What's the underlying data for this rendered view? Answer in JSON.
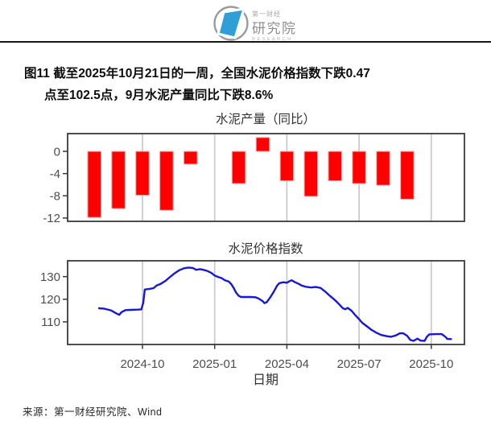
{
  "header": {
    "logo": {
      "brand_small": "第一财经",
      "brand_main": "研究院",
      "brand_sub": "RESEARCH"
    }
  },
  "figure": {
    "caption_line1": "图11  截至2025年10月21日的一周，全国水泥价格指数下跌0.47",
    "caption_line2": "点至102.5点，9月水泥产量同比下跌8.6%",
    "xlabel": "日期",
    "source": "来源：第一财经研究院、Wind"
  },
  "colors": {
    "bar": "#fe0000",
    "bar_edge": "#ffa8a8",
    "line": "#1717d9",
    "grid": "#c9c9c9",
    "border": "#3a3a3a",
    "tick_text": "#4d4d4d",
    "axis_tick": "#3a3a3a",
    "logo_blue": "#2f9fd6",
    "logo_gray": "#9b9b9b"
  },
  "x_axis": {
    "ticks": [
      "2024-10",
      "2025-01",
      "2025-04",
      "2025-07",
      "2025-10"
    ],
    "label": "日期"
  },
  "chart_data": [
    {
      "type": "bar",
      "title": "水泥产量（同比）",
      "ylabel": "",
      "xlabel": "",
      "categories": [
        "2024-08",
        "2024-09",
        "2024-10",
        "2024-11",
        "2024-12",
        "2025-02",
        "2025-03",
        "2025-04",
        "2025-05",
        "2025-06",
        "2025-07",
        "2025-08",
        "2025-09"
      ],
      "values": [
        -11.9,
        -10.3,
        -7.9,
        -10.6,
        -2.3,
        -5.8,
        2.5,
        -5.3,
        -8.1,
        -5.3,
        -5.8,
        -6.1,
        -8.6
      ],
      "yticks": [
        0,
        -4,
        -8,
        -12
      ],
      "ylim": [
        -12.6,
        3.2
      ],
      "x_gridlines": [
        "2024-10",
        "2025-01",
        "2025-04",
        "2025-07",
        "2025-10"
      ],
      "grid": "vertical-only",
      "legend": "none"
    },
    {
      "type": "line",
      "title": "水泥价格指数",
      "ylabel": "",
      "xlabel": "日期",
      "yticks": [
        130,
        120,
        110
      ],
      "ylim": [
        100,
        137
      ],
      "x_gridlines": [
        "2024-10",
        "2025-01",
        "2025-04",
        "2025-07",
        "2025-10"
      ],
      "grid": "vertical-only",
      "legend": "none",
      "series": [
        {
          "name": "水泥价格指数",
          "points": [
            [
              "2024-08-07",
              116.0
            ],
            [
              "2024-08-14",
              115.8
            ],
            [
              "2024-08-22",
              115.1
            ],
            [
              "2024-08-28",
              113.9
            ],
            [
              "2024-09-02",
              113.1
            ],
            [
              "2024-09-05",
              114.3
            ],
            [
              "2024-09-10",
              115.2
            ],
            [
              "2024-09-17",
              115.3
            ],
            [
              "2024-09-25",
              115.4
            ],
            [
              "2024-09-30",
              115.5
            ],
            [
              "2024-10-02",
              118.5
            ],
            [
              "2024-10-04",
              124.3
            ],
            [
              "2024-10-10",
              124.6
            ],
            [
              "2024-10-15",
              124.9
            ],
            [
              "2024-10-19",
              126.1
            ],
            [
              "2024-10-24",
              126.8
            ],
            [
              "2024-10-30",
              128.1
            ],
            [
              "2024-11-05",
              129.7
            ],
            [
              "2024-11-11",
              131.4
            ],
            [
              "2024-11-17",
              132.8
            ],
            [
              "2024-11-23",
              133.7
            ],
            [
              "2024-11-29",
              134.0
            ],
            [
              "2024-12-04",
              133.8
            ],
            [
              "2024-12-08",
              133.0
            ],
            [
              "2024-12-13",
              133.3
            ],
            [
              "2024-12-17",
              133.0
            ],
            [
              "2024-12-22",
              132.5
            ],
            [
              "2024-12-27",
              131.7
            ],
            [
              "2025-01-01",
              130.5
            ],
            [
              "2025-01-05",
              129.9
            ],
            [
              "2025-01-10",
              129.3
            ],
            [
              "2025-01-14",
              128.4
            ],
            [
              "2025-01-19",
              127.8
            ],
            [
              "2025-01-22",
              126.7
            ],
            [
              "2025-01-25",
              125.0
            ],
            [
              "2025-01-28",
              123.0
            ],
            [
              "2025-02-01",
              121.5
            ],
            [
              "2025-02-04",
              121.0
            ],
            [
              "2025-02-10",
              121.0
            ],
            [
              "2025-02-16",
              121.0
            ],
            [
              "2025-02-22",
              120.9
            ],
            [
              "2025-02-26",
              120.3
            ],
            [
              "2025-03-01",
              119.1
            ],
            [
              "2025-03-03",
              118.3
            ],
            [
              "2025-03-06",
              118.7
            ],
            [
              "2025-03-10",
              120.6
            ],
            [
              "2025-03-15",
              123.4
            ],
            [
              "2025-03-19",
              126.0
            ],
            [
              "2025-03-22",
              127.1
            ],
            [
              "2025-03-27",
              127.5
            ],
            [
              "2025-04-01",
              127.3
            ],
            [
              "2025-04-04",
              127.9
            ],
            [
              "2025-04-07",
              128.4
            ],
            [
              "2025-04-11",
              127.6
            ],
            [
              "2025-04-16",
              126.8
            ],
            [
              "2025-04-20",
              126.0
            ],
            [
              "2025-04-25",
              125.5
            ],
            [
              "2025-05-01",
              125.2
            ],
            [
              "2025-05-07",
              125.4
            ],
            [
              "2025-05-13",
              125.0
            ],
            [
              "2025-05-19",
              123.4
            ],
            [
              "2025-05-25",
              121.5
            ],
            [
              "2025-06-01",
              119.6
            ],
            [
              "2025-06-07",
              117.5
            ],
            [
              "2025-06-11",
              116.0
            ],
            [
              "2025-06-14",
              115.6
            ],
            [
              "2025-06-17",
              116.2
            ],
            [
              "2025-06-22",
              114.9
            ],
            [
              "2025-06-26",
              113.2
            ],
            [
              "2025-07-01",
              111.2
            ],
            [
              "2025-07-05",
              109.6
            ],
            [
              "2025-07-11",
              108.0
            ],
            [
              "2025-07-17",
              106.4
            ],
            [
              "2025-07-23",
              105.2
            ],
            [
              "2025-07-29",
              104.2
            ],
            [
              "2025-08-05",
              103.7
            ],
            [
              "2025-08-11",
              103.4
            ],
            [
              "2025-08-17",
              104.0
            ],
            [
              "2025-08-22",
              104.9
            ],
            [
              "2025-08-26",
              105.0
            ],
            [
              "2025-09-01",
              103.8
            ],
            [
              "2025-09-05",
              102.0
            ],
            [
              "2025-09-09",
              101.6
            ],
            [
              "2025-09-14",
              102.6
            ],
            [
              "2025-09-18",
              101.7
            ],
            [
              "2025-09-23",
              101.6
            ],
            [
              "2025-09-26",
              103.5
            ],
            [
              "2025-09-29",
              104.5
            ],
            [
              "2025-10-07",
              104.6
            ],
            [
              "2025-10-14",
              104.6
            ],
            [
              "2025-10-17",
              103.9
            ],
            [
              "2025-10-20",
              103.0
            ],
            [
              "2025-10-21",
              102.5
            ],
            [
              "2025-10-26",
              102.4
            ]
          ]
        }
      ]
    }
  ]
}
